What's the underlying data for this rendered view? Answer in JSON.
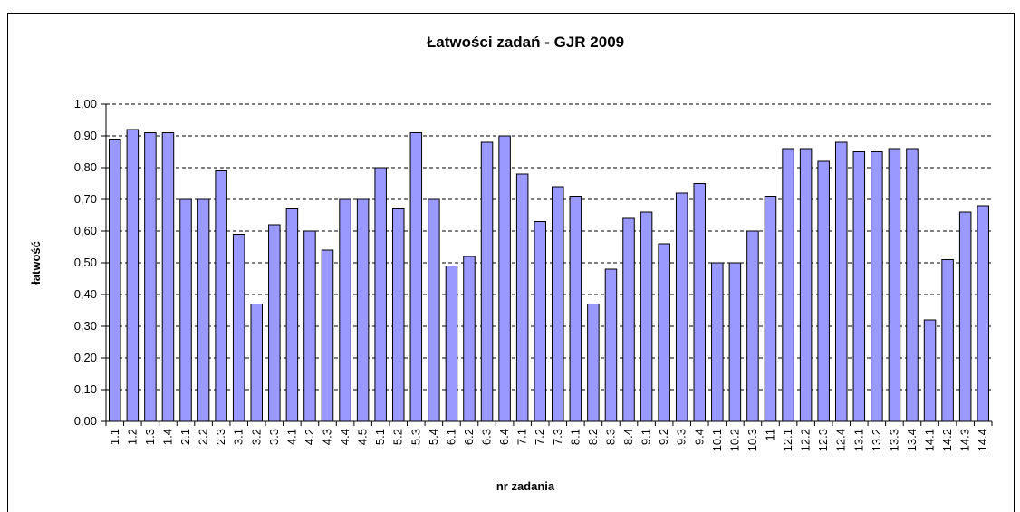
{
  "chart_data": {
    "type": "bar",
    "title": "Łatwości zadań - GJR 2009",
    "x_label": "nr zadania",
    "y_label": "łatwość",
    "categories": [
      "1.1",
      "1.2",
      "1.3",
      "1.4",
      "2.1",
      "2.2",
      "2.3",
      "3.1",
      "3.2",
      "3.3",
      "4.1",
      "4.2",
      "4.3",
      "4.4",
      "4.5",
      "5.1",
      "5.2",
      "5.3",
      "5.4",
      "6.1",
      "6.2",
      "6.3",
      "6.4",
      "7.1",
      "7.2",
      "7.3",
      "8.1",
      "8.2",
      "8.3",
      "8.4",
      "9.1",
      "9.2",
      "9.3",
      "9.4",
      "10.1",
      "10.2",
      "10.3",
      "11",
      "12.1",
      "12.2",
      "12.3",
      "12.4",
      "13.1",
      "13.2",
      "13.3",
      "13.4",
      "14.1",
      "14.2",
      "14.3",
      "14.4"
    ],
    "values": [
      0.89,
      0.92,
      0.91,
      0.91,
      0.7,
      0.7,
      0.79,
      0.59,
      0.37,
      0.62,
      0.67,
      0.6,
      0.54,
      0.7,
      0.7,
      0.8,
      0.67,
      0.91,
      0.7,
      0.49,
      0.52,
      0.88,
      0.9,
      0.78,
      0.63,
      0.74,
      0.71,
      0.37,
      0.48,
      0.64,
      0.66,
      0.56,
      0.72,
      0.75,
      0.5,
      0.5,
      0.6,
      0.71,
      0.86,
      0.86,
      0.82,
      0.88,
      0.85,
      0.85,
      0.86,
      0.86,
      0.32,
      0.51,
      0.66,
      0.68
    ],
    "color": "#9999ff",
    "ylim": [
      0,
      1
    ],
    "yticks": [
      {
        "value": 0,
        "label": "0,00"
      },
      {
        "value": 0.1,
        "label": "0,10"
      },
      {
        "value": 0.2,
        "label": "0,20"
      },
      {
        "value": 0.3,
        "label": "0,30"
      },
      {
        "value": 0.4,
        "label": "0,40"
      },
      {
        "value": 0.5,
        "label": "0,50"
      },
      {
        "value": 0.6,
        "label": "0,60"
      },
      {
        "value": 0.7,
        "label": "0,70"
      },
      {
        "value": 0.8,
        "label": "0,80"
      },
      {
        "value": 0.9,
        "label": "0,90"
      },
      {
        "value": 1,
        "label": "1,00"
      }
    ],
    "grid": true
  }
}
